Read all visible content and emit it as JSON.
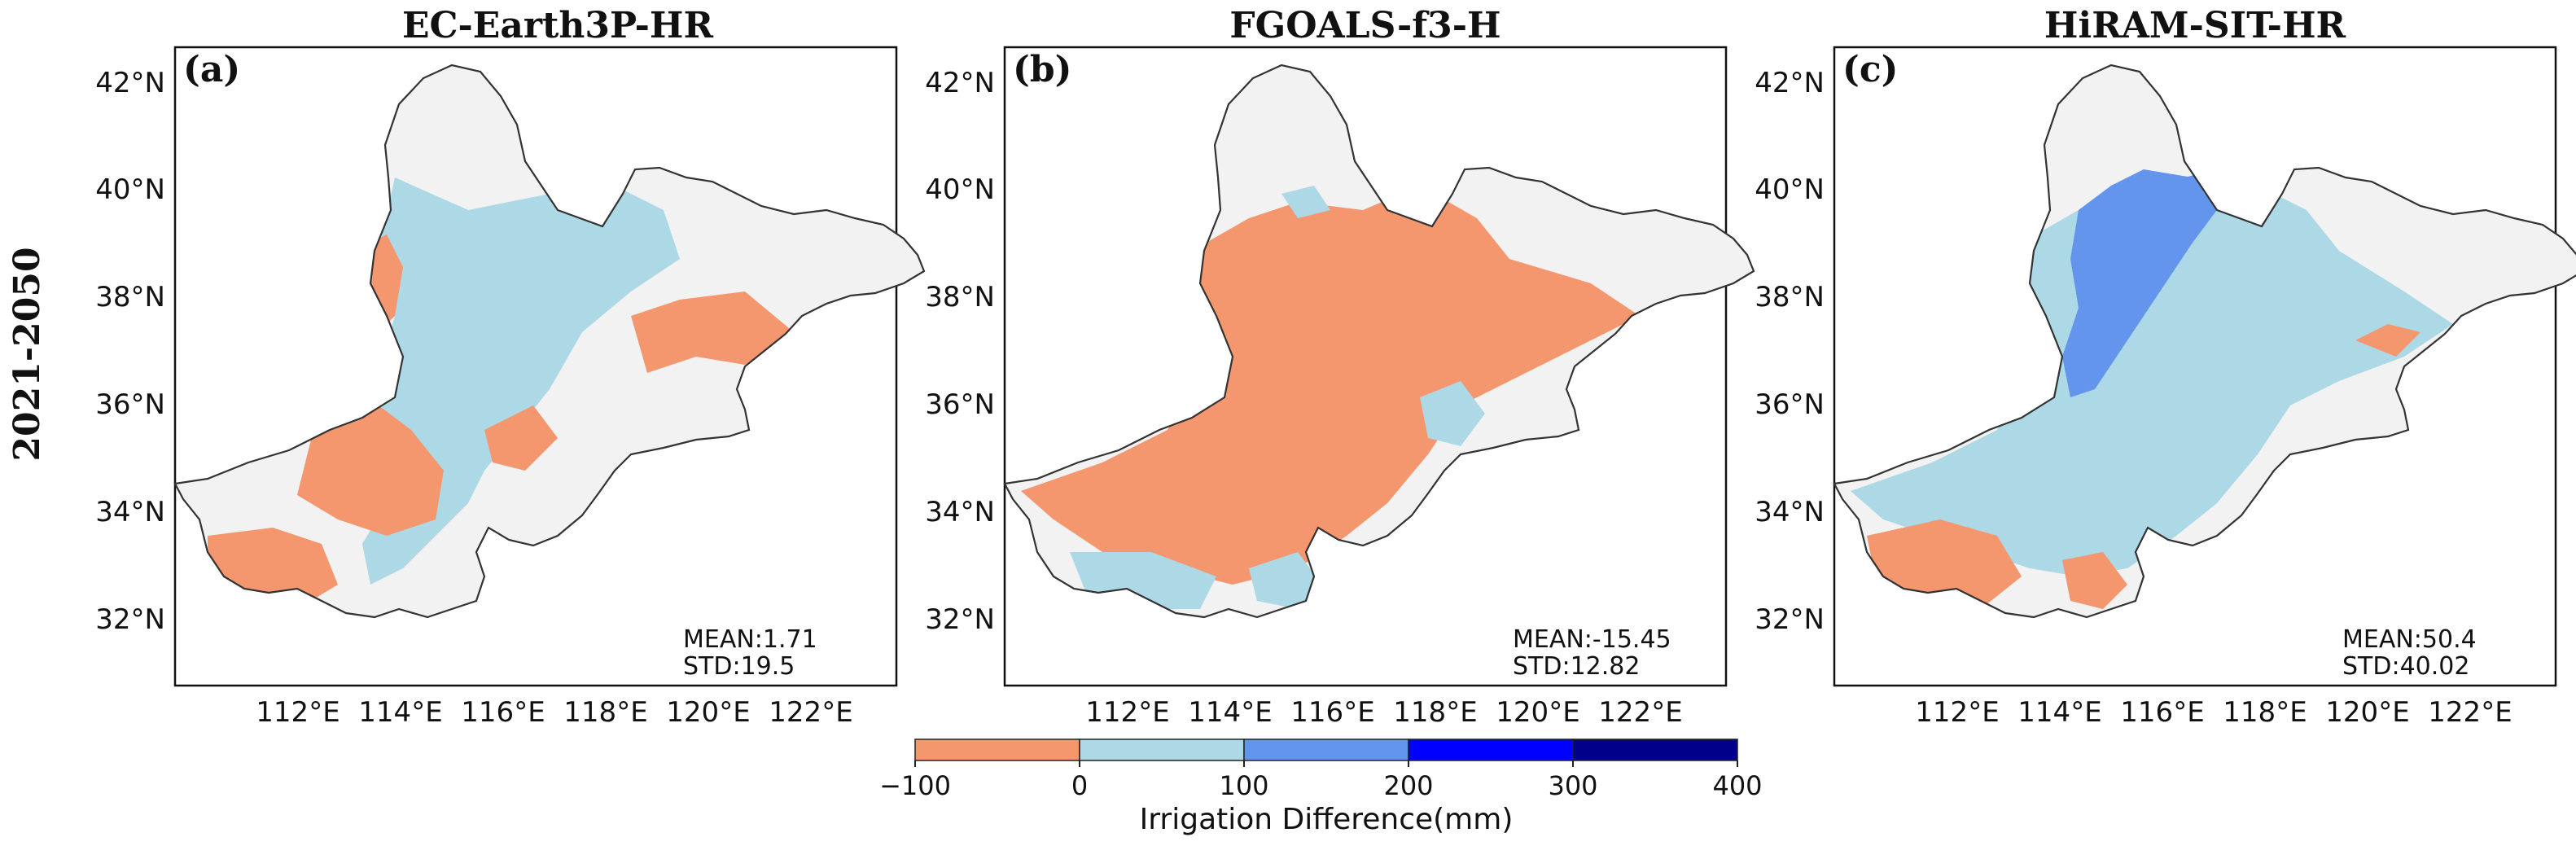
{
  "figure": {
    "row_label": "2021-2050",
    "panels": [
      {
        "letter": "(a)",
        "title": "EC-Earth3P-HR",
        "mean_text": "MEAN:1.71",
        "std_text": "STD:19.5",
        "dominant": "mixed-red-lightblue"
      },
      {
        "letter": "(b)",
        "title": "FGOALS-f3-H",
        "mean_text": "MEAN:-15.45",
        "std_text": "STD:12.82",
        "dominant": "red"
      },
      {
        "letter": "(c)",
        "title": "HiRAM-SIT-HR",
        "mean_text": "MEAN:50.4",
        "std_text": "STD:40.02",
        "dominant": "lightblue-with-blue"
      }
    ],
    "lat_ticks": [
      "42°N",
      "40°N",
      "38°N",
      "36°N",
      "34°N",
      "32°N"
    ],
    "lon_ticks": [
      "112°E",
      "114°E",
      "116°E",
      "118°E",
      "120°E",
      "122°E"
    ],
    "colorbar": {
      "label": "Irrigation Difference(mm)",
      "tick_labels": [
        "−100",
        "0",
        "100",
        "200",
        "300",
        "400"
      ],
      "bins": [
        {
          "from": -100,
          "to": 0,
          "color": "#f4966e"
        },
        {
          "from": 0,
          "to": 100,
          "color": "#add8e6"
        },
        {
          "from": 100,
          "to": 200,
          "color": "#6495ed"
        },
        {
          "from": 200,
          "to": 300,
          "color": "#0000ff"
        },
        {
          "from": 300,
          "to": 400,
          "color": "#00008b"
        }
      ]
    },
    "colors": {
      "background": "#f2f2f2",
      "negative": "#f4966e",
      "positive_low": "#add8e6",
      "positive_mid": "#6495ed",
      "border": "#333333"
    }
  }
}
